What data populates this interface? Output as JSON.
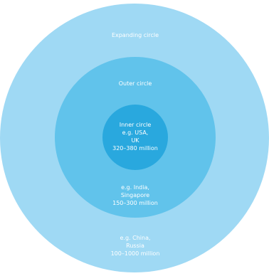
{
  "circles": {
    "expanding": {
      "title": "Expanding circle",
      "lines": [
        "e.g. China,",
        "Russia",
        "100–1000 million"
      ],
      "color": "#9fd9f4"
    },
    "outer": {
      "title": "Outer circle",
      "lines": [
        "e.g. India,",
        "Singapore",
        "150–300 million"
      ],
      "color": "#61c3eb"
    },
    "inner": {
      "lines": [
        "Inner circle",
        "e.g. USA,",
        "UK",
        "320–380 million"
      ],
      "color": "#29a8de"
    }
  }
}
